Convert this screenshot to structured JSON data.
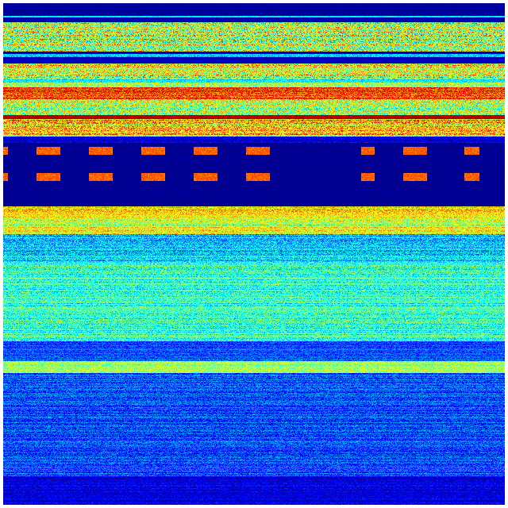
{
  "chart_data": {
    "type": "heatmap",
    "title": "",
    "xlabel": "",
    "ylabel": "",
    "colormap": "jet",
    "colormap_stops": [
      "#00007f",
      "#0000ff",
      "#00ffff",
      "#ffff00",
      "#ff0000",
      "#7f0000"
    ],
    "grid": false,
    "legend": "none"
  }
}
